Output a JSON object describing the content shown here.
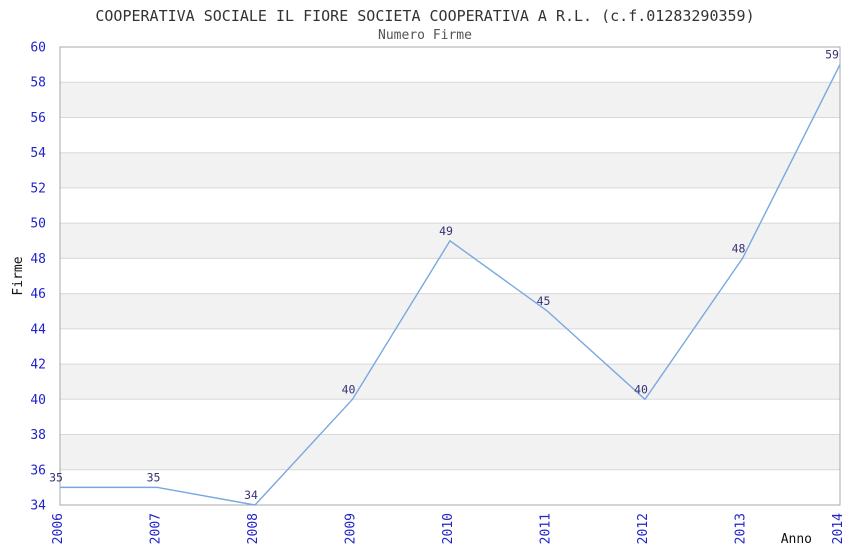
{
  "chart_data": {
    "type": "line",
    "title": "COOPERATIVA SOCIALE IL FIORE SOCIETA COOPERATIVA A R.L. (c.f.01283290359)",
    "subtitle": "Numero Firme",
    "xlabel": "Anno",
    "ylabel": "Firme",
    "categories": [
      "2006",
      "2007",
      "2008",
      "2009",
      "2010",
      "2011",
      "2012",
      "2013",
      "2014"
    ],
    "series": [
      {
        "name": "Numero Firme",
        "values": [
          35,
          35,
          34,
          40,
          49,
          45,
          40,
          48,
          59
        ]
      }
    ],
    "ylim": [
      34,
      60
    ],
    "ytick_step": 2,
    "grid": "horizontal-gridlines-with-alternating-bands",
    "legend": "none",
    "point_labels_visible": true,
    "colors": {
      "line": "#79A8DF",
      "tick_label": "#2323CC",
      "data_label": "#333377",
      "band_fill": "#F2F2F2",
      "gridline": "#D8D8D8",
      "plot_border": "#A8A8A8",
      "title_text": "#333333",
      "subtitle_text": "#555555",
      "axis_title_text": "#111111",
      "background": "#FFFFFF"
    }
  }
}
